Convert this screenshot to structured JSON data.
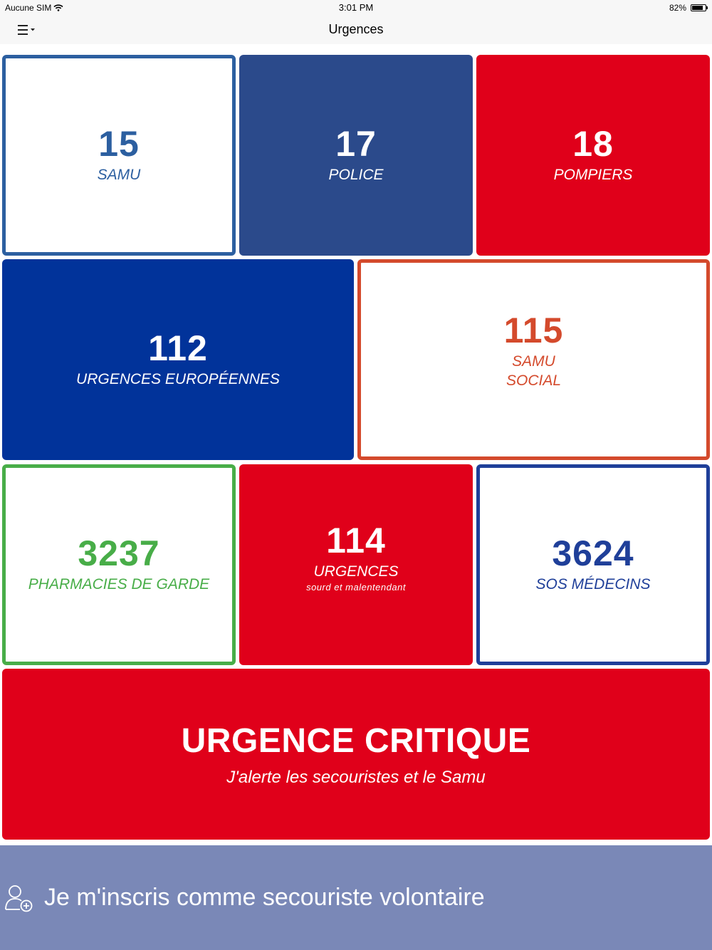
{
  "status_bar": {
    "carrier": "Aucune SIM",
    "time": "3:01 PM",
    "battery_percent": "82%",
    "battery_level": 0.82
  },
  "nav": {
    "title": "Urgences",
    "menu_icon": "hamburger-menu-icon"
  },
  "tiles": [
    {
      "number": "15",
      "label": "SAMU",
      "color": "#2c5fa0",
      "style": "outlined"
    },
    {
      "number": "17",
      "label": "POLICE",
      "color": "#2b4a8b",
      "style": "filled"
    },
    {
      "number": "18",
      "label": "POMPIERS",
      "color": "#e0001a",
      "style": "filled"
    },
    {
      "number": "112",
      "label": "URGENCES EUROPÉENNES",
      "color": "#01339a",
      "style": "filled"
    },
    {
      "number": "115",
      "label_line1": "SAMU",
      "label_line2": "SOCIAL",
      "color": "#d44a2c",
      "style": "outlined"
    },
    {
      "number": "3237",
      "label": "PHARMACIES DE GARDE",
      "color": "#48ad48",
      "style": "outlined"
    },
    {
      "number": "114",
      "label": "URGENCES",
      "sublabel": "sourd et malentendant",
      "color": "#e0001a",
      "style": "filled"
    },
    {
      "number": "3624",
      "label": "SOS MÉDECINS",
      "color": "#1f3f99",
      "style": "outlined"
    }
  ],
  "critical": {
    "title": "URGENCE CRITIQUE",
    "subtitle": "J'alerte les secouristes et le Samu",
    "color": "#e0001a"
  },
  "volunteer": {
    "text": "Je m'inscris comme secouriste volontaire",
    "icon": "add-user-icon",
    "color": "#7a88b7"
  }
}
